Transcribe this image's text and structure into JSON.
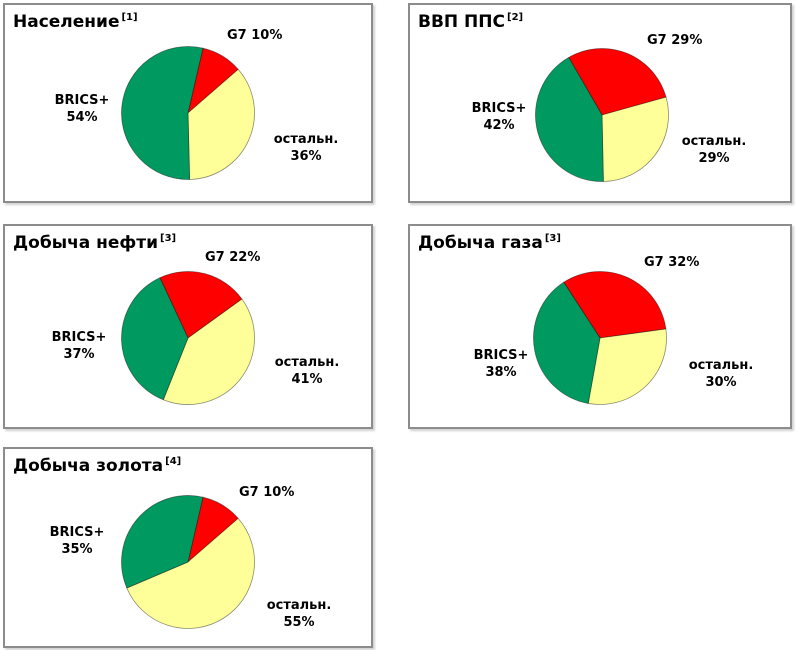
{
  "page": {
    "background": "#FFFFFF"
  },
  "colors": {
    "g7": "#FF0000",
    "rest": "#FFFF99",
    "brics": "#009A60",
    "panel_border": "#8C8C8C",
    "slice_outline": "rgba(0,0,0,0.45)"
  },
  "chart_data": [
    {
      "type": "pie",
      "title": "Население",
      "footnote_ref": "[1]",
      "start_angle_deg": 13,
      "slices": [
        {
          "name": "G7",
          "value": 10,
          "color": "#FF0000"
        },
        {
          "name": "остальн.",
          "value": 36,
          "color": "#FFFF99"
        },
        {
          "name": "BRICS+",
          "value": 54,
          "color": "#009A60"
        }
      ],
      "labels": {
        "g7": "G7 10%",
        "brics_name": "BRICS+",
        "brics_value": "54%",
        "rest_name": "остальн.",
        "rest_value": "36%"
      }
    },
    {
      "type": "pie",
      "title": "ВВП ППС",
      "footnote_ref": "[2]",
      "start_angle_deg": -30,
      "slices": [
        {
          "name": "G7",
          "value": 29,
          "color": "#FF0000"
        },
        {
          "name": "остальн.",
          "value": 29,
          "color": "#FFFF99"
        },
        {
          "name": "BRICS+",
          "value": 42,
          "color": "#009A60"
        }
      ],
      "labels": {
        "g7": "G7 29%",
        "brics_name": "BRICS+",
        "brics_value": "42%",
        "rest_name": "остальн.",
        "rest_value": "29%"
      }
    },
    {
      "type": "pie",
      "title": "Добыча нефти",
      "footnote_ref": "[3]",
      "start_angle_deg": -25,
      "slices": [
        {
          "name": "G7",
          "value": 22,
          "color": "#FF0000"
        },
        {
          "name": "остальн.",
          "value": 41,
          "color": "#FFFF99"
        },
        {
          "name": "BRICS+",
          "value": 37,
          "color": "#009A60"
        }
      ],
      "labels": {
        "g7": "G7 22%",
        "brics_name": "BRICS+",
        "brics_value": "37%",
        "rest_name": "остальн.",
        "rest_value": "41%"
      }
    },
    {
      "type": "pie",
      "title": "Добыча газа",
      "footnote_ref": "[3]",
      "start_angle_deg": -33,
      "slices": [
        {
          "name": "G7",
          "value": 32,
          "color": "#FF0000"
        },
        {
          "name": "остальн.",
          "value": 30,
          "color": "#FFFF99"
        },
        {
          "name": "BRICS+",
          "value": 38,
          "color": "#009A60"
        }
      ],
      "labels": {
        "g7": "G7 32%",
        "brics_name": "BRICS+",
        "brics_value": "38%",
        "rest_name": "остальн.",
        "rest_value": "30%"
      }
    },
    {
      "type": "pie",
      "title": "Добыча золота",
      "footnote_ref": "[4]",
      "start_angle_deg": 13,
      "slices": [
        {
          "name": "G7",
          "value": 10,
          "color": "#FF0000"
        },
        {
          "name": "остальн.",
          "value": 55,
          "color": "#FFFF99"
        },
        {
          "name": "BRICS+",
          "value": 35,
          "color": "#009A60"
        }
      ],
      "labels": {
        "g7": "G7 10%",
        "brics_name": "BRICS+",
        "brics_value": "35%",
        "rest_name": "остальн.",
        "rest_value": "55%"
      }
    }
  ]
}
